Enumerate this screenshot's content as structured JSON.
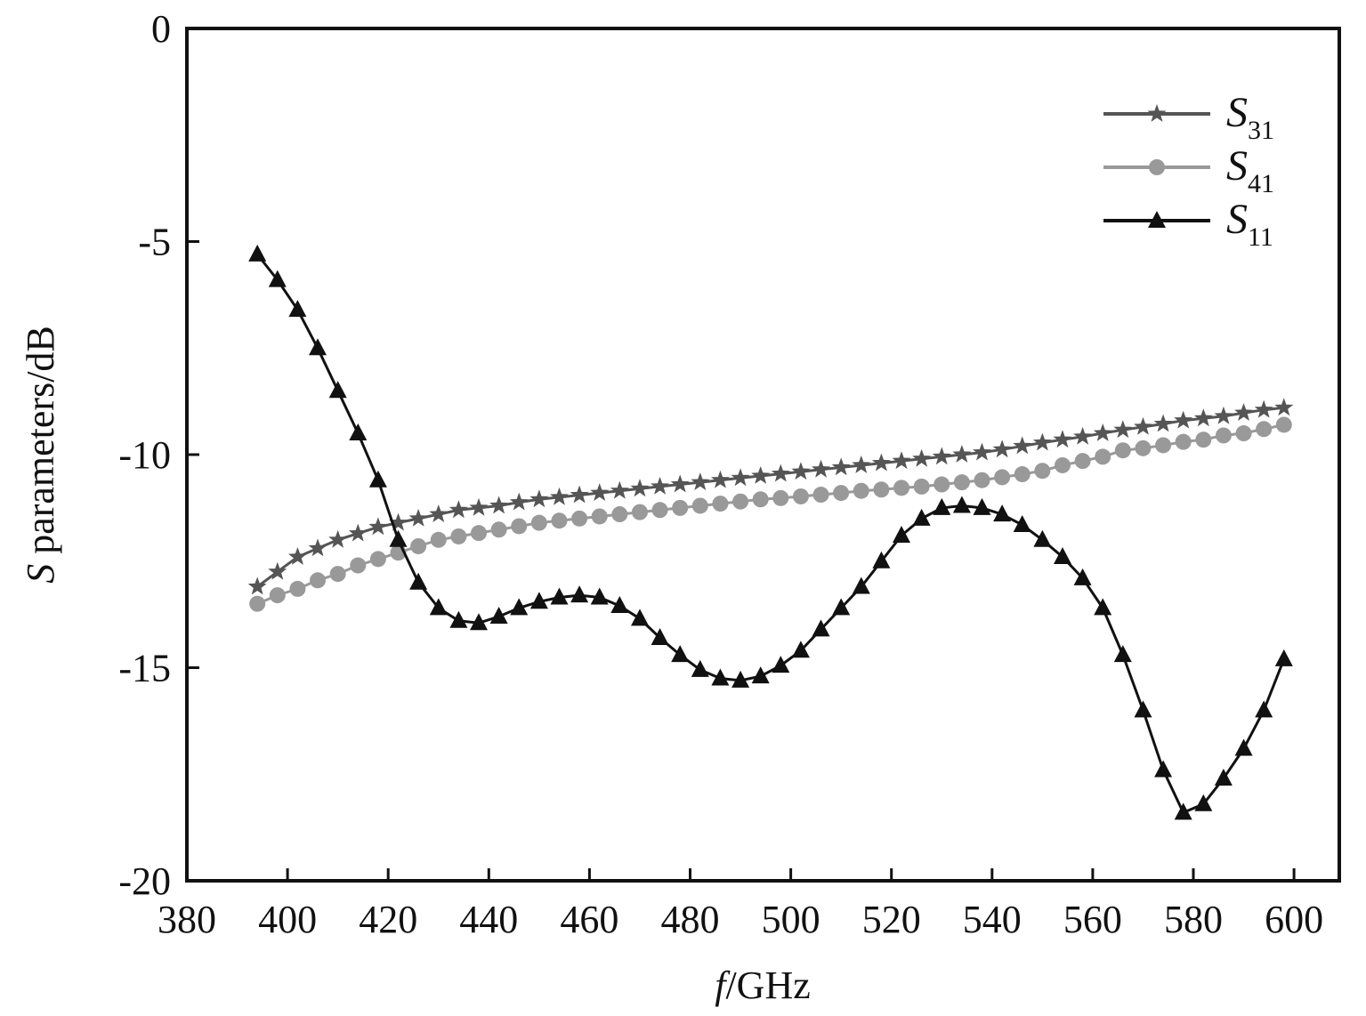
{
  "chart_data": {
    "type": "line",
    "xlabel": "f/GHz",
    "ylabel": "S parameters/dB",
    "x": [
      394,
      398,
      402,
      406,
      410,
      414,
      418,
      422,
      426,
      430,
      434,
      438,
      442,
      446,
      450,
      454,
      458,
      462,
      466,
      470,
      474,
      478,
      482,
      486,
      490,
      494,
      498,
      502,
      506,
      510,
      514,
      518,
      522,
      526,
      530,
      534,
      538,
      542,
      546,
      550,
      554,
      558,
      562,
      566,
      570,
      574,
      578,
      582,
      586,
      590,
      594,
      598
    ],
    "series": [
      {
        "name": "S31",
        "color": "#555555",
        "marker": "star",
        "values": [
          -13.1,
          -12.75,
          -12.4,
          -12.2,
          -12.0,
          -11.85,
          -11.7,
          -11.6,
          -11.5,
          -11.4,
          -11.3,
          -11.25,
          -11.2,
          -11.12,
          -11.05,
          -11.0,
          -10.95,
          -10.9,
          -10.85,
          -10.8,
          -10.75,
          -10.7,
          -10.65,
          -10.6,
          -10.55,
          -10.5,
          -10.45,
          -10.4,
          -10.35,
          -10.3,
          -10.25,
          -10.2,
          -10.15,
          -10.1,
          -10.05,
          -10.0,
          -9.95,
          -9.88,
          -9.8,
          -9.72,
          -9.65,
          -9.58,
          -9.5,
          -9.42,
          -9.35,
          -9.28,
          -9.2,
          -9.15,
          -9.1,
          -9.02,
          -8.95,
          -8.9
        ]
      },
      {
        "name": "S41",
        "color": "#999999",
        "marker": "circle",
        "values": [
          -13.5,
          -13.3,
          -13.15,
          -12.95,
          -12.8,
          -12.6,
          -12.45,
          -12.3,
          -12.15,
          -12.0,
          -11.92,
          -11.84,
          -11.76,
          -11.68,
          -11.6,
          -11.55,
          -11.5,
          -11.45,
          -11.4,
          -11.35,
          -11.3,
          -11.25,
          -11.2,
          -11.15,
          -11.1,
          -11.05,
          -11.02,
          -10.98,
          -10.94,
          -10.9,
          -10.85,
          -10.82,
          -10.78,
          -10.75,
          -10.7,
          -10.65,
          -10.6,
          -10.53,
          -10.46,
          -10.38,
          -10.25,
          -10.15,
          -10.05,
          -9.9,
          -9.85,
          -9.78,
          -9.7,
          -9.65,
          -9.55,
          -9.5,
          -9.4,
          -9.3
        ]
      },
      {
        "name": "S11",
        "color": "#111111",
        "marker": "triangle",
        "values": [
          -5.3,
          -5.9,
          -6.6,
          -7.5,
          -8.5,
          -9.5,
          -10.6,
          -12.0,
          -13.0,
          -13.6,
          -13.9,
          -13.95,
          -13.8,
          -13.6,
          -13.45,
          -13.35,
          -13.3,
          -13.35,
          -13.55,
          -13.85,
          -14.3,
          -14.7,
          -15.05,
          -15.25,
          -15.3,
          -15.2,
          -14.95,
          -14.6,
          -14.1,
          -13.6,
          -13.1,
          -12.5,
          -11.9,
          -11.5,
          -11.25,
          -11.2,
          -11.25,
          -11.4,
          -11.65,
          -12.0,
          -12.4,
          -12.9,
          -13.6,
          -14.7,
          -16.0,
          -17.4,
          -18.4,
          -18.2,
          -17.6,
          -16.9,
          -16.0,
          -14.8
        ]
      }
    ],
    "xlim": [
      380,
      609
    ],
    "xticks": [
      380,
      400,
      420,
      440,
      460,
      480,
      500,
      520,
      540,
      560,
      580,
      600
    ],
    "ylim": [
      -20,
      0
    ],
    "yticks": [
      0,
      -5,
      -10,
      -15,
      -20
    ],
    "legend": "upper right"
  }
}
